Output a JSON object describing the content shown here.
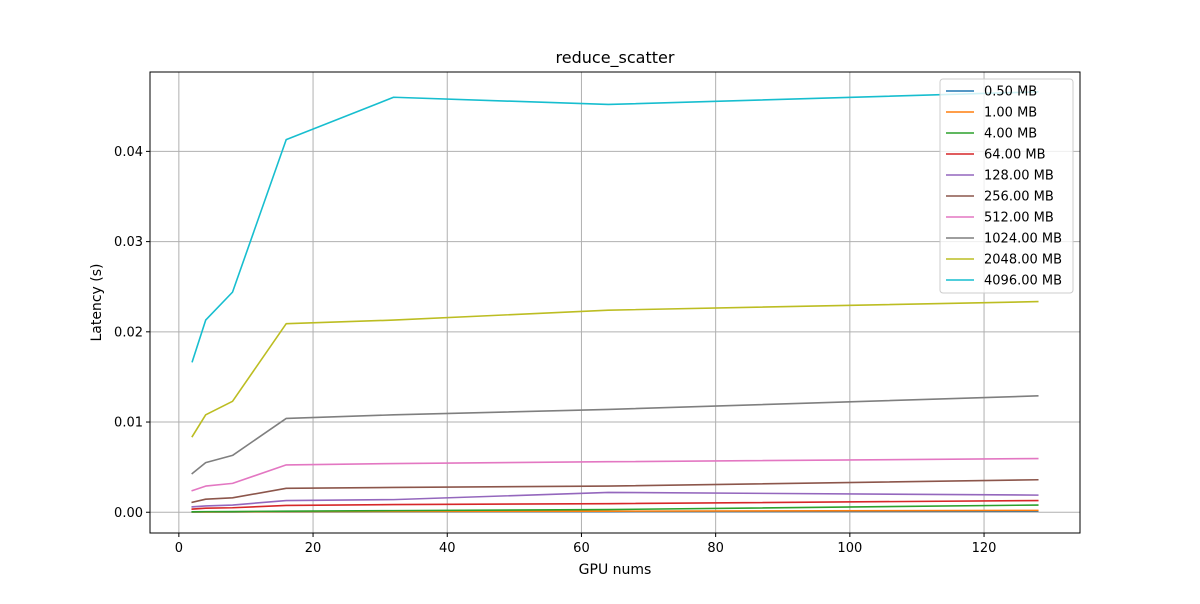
{
  "chart_data": {
    "type": "line",
    "title": "reduce_scatter",
    "xlabel": "GPU nums",
    "ylabel": "Latency (s)",
    "xlim": [
      -4.3,
      134.3
    ],
    "ylim": [
      -0.0023,
      0.0488
    ],
    "xticks": [
      0,
      20,
      40,
      60,
      80,
      100,
      120
    ],
    "yticks": [
      0.0,
      0.01,
      0.02,
      0.03,
      0.04
    ],
    "xtick_labels": [
      "0",
      "20",
      "40",
      "60",
      "80",
      "100",
      "120"
    ],
    "ytick_labels": [
      "0.00",
      "0.01",
      "0.02",
      "0.03",
      "0.04"
    ],
    "grid": true,
    "legend_position": "top-right",
    "x": [
      2,
      4,
      8,
      16,
      32,
      64,
      128
    ],
    "series": [
      {
        "name": "0.50 MB",
        "color": "#1f77b4",
        "values": [
          2e-05,
          3e-05,
          4e-05,
          5e-05,
          6e-05,
          8e-05,
          0.00012
        ]
      },
      {
        "name": "1.00 MB",
        "color": "#ff7f0e",
        "values": [
          3e-05,
          4e-05,
          5e-05,
          7e-05,
          9e-05,
          0.00012,
          0.0002
        ]
      },
      {
        "name": "4.00 MB",
        "color": "#2ca02c",
        "values": [
          5e-05,
          7e-05,
          8e-05,
          0.00012,
          0.00018,
          0.0003,
          0.0008
        ]
      },
      {
        "name": "64.00 MB",
        "color": "#d62728",
        "values": [
          0.00035,
          0.00045,
          0.0005,
          0.00075,
          0.00085,
          0.00095,
          0.0013
        ]
      },
      {
        "name": "128.00 MB",
        "color": "#9467bd",
        "values": [
          0.0006,
          0.0007,
          0.0008,
          0.0013,
          0.0014,
          0.0022,
          0.0019
        ]
      },
      {
        "name": "256.00 MB",
        "color": "#8c564b",
        "values": [
          0.0011,
          0.00145,
          0.0016,
          0.00265,
          0.00275,
          0.0029,
          0.0036
        ]
      },
      {
        "name": "512.00 MB",
        "color": "#e377c2",
        "values": [
          0.0024,
          0.0029,
          0.0032,
          0.00525,
          0.0054,
          0.0056,
          0.00595
        ]
      },
      {
        "name": "1024.00 MB",
        "color": "#7f7f7f",
        "values": [
          0.0043,
          0.0055,
          0.0063,
          0.0104,
          0.0108,
          0.0114,
          0.0129
        ]
      },
      {
        "name": "2048.00 MB",
        "color": "#bcbd22",
        "values": [
          0.0084,
          0.0108,
          0.0123,
          0.0209,
          0.0213,
          0.0224,
          0.02335
        ]
      },
      {
        "name": "4096.00 MB",
        "color": "#17becf",
        "values": [
          0.0167,
          0.0213,
          0.0244,
          0.0413,
          0.046,
          0.0452,
          0.0466
        ]
      }
    ]
  }
}
